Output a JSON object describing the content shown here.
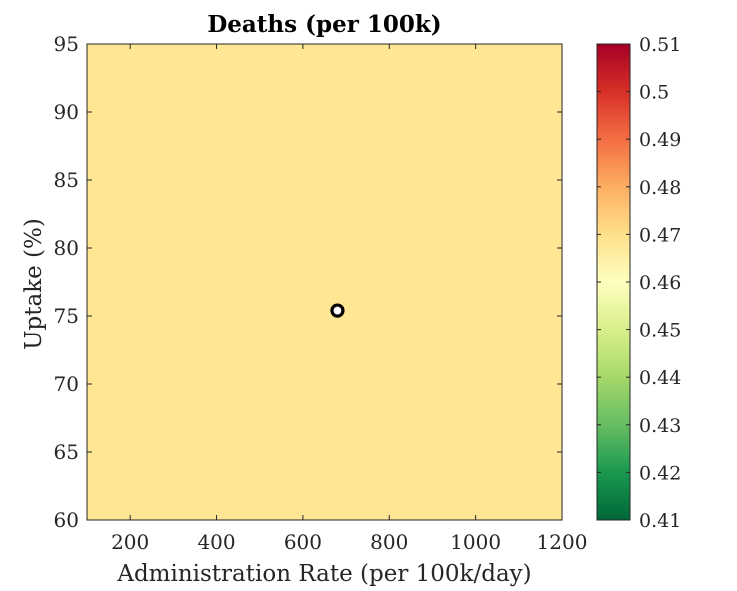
{
  "chart_data": {
    "type": "heatmap",
    "title": "Deaths (per 100k)",
    "xlabel": "Administration Rate (per 100k/day)",
    "ylabel": "Uptake (%)",
    "xlim": [
      100,
      1200
    ],
    "ylim": [
      60,
      95
    ],
    "xticks": [
      200,
      400,
      600,
      800,
      1000,
      1200
    ],
    "yticks": [
      60,
      65,
      70,
      75,
      80,
      85,
      90,
      95
    ],
    "heatmap_value": 0.468,
    "clim": [
      0.41,
      0.51
    ],
    "colorbar_ticks": [
      "0.41",
      "0.42",
      "0.43",
      "0.44",
      "0.45",
      "0.46",
      "0.47",
      "0.48",
      "0.49",
      "0.5",
      "0.51"
    ],
    "colormap": [
      "#006837",
      "#1a9850",
      "#66bd63",
      "#a6d96a",
      "#d9ef8b",
      "#ffffbf",
      "#fee08b",
      "#fdae61",
      "#f46d43",
      "#d73027",
      "#a50026"
    ],
    "marker": {
      "x": 680,
      "y": 75.4,
      "shape": "circle"
    },
    "grid": false,
    "colors": {
      "text": "#262626",
      "axes": "#262626",
      "marker_edge": "#000000",
      "marker_face": "#ffffff"
    }
  }
}
